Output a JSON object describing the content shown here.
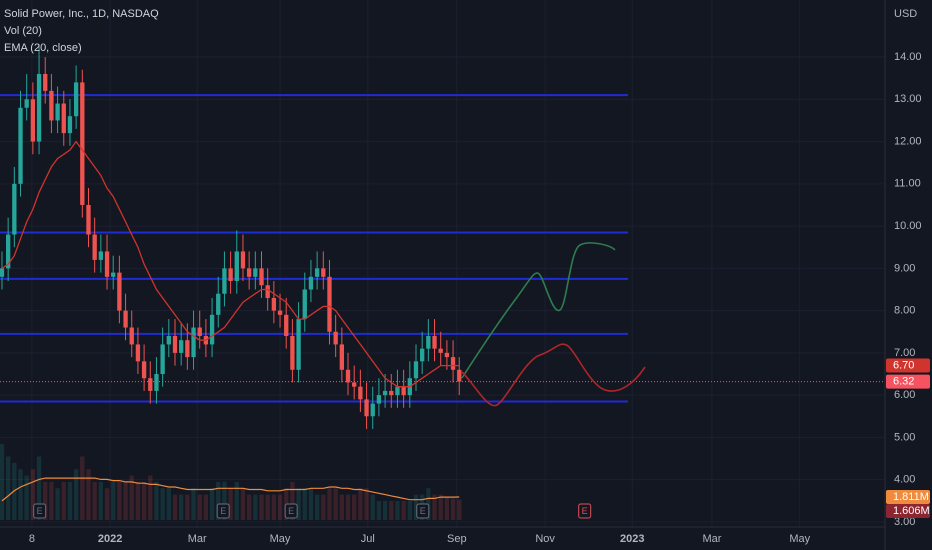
{
  "chart_data": {
    "type": "candlestick",
    "title": "Solid Power, Inc., 1D, NASDAQ",
    "currency": "USD",
    "up_color": "#26a69a",
    "down_color": "#ef5350",
    "candles": {
      "open": [
        8.8,
        9.0,
        9.8,
        11.0,
        12.8,
        13.0,
        12.0,
        13.6,
        13.2,
        12.5,
        12.9,
        12.2,
        12.6,
        13.4,
        10.5,
        9.8,
        9.2,
        9.4,
        8.8,
        8.9,
        8.0,
        7.6,
        7.2,
        6.8,
        6.4,
        6.1,
        6.5,
        7.2,
        7.4,
        7.0,
        7.3,
        6.9,
        7.6,
        7.4,
        7.2,
        7.9,
        8.4,
        9.0,
        8.7,
        9.4,
        9.0,
        8.8,
        9.0,
        8.6,
        8.3,
        8.0,
        7.9,
        7.4,
        6.6,
        7.8,
        8.5,
        8.8,
        9.0,
        8.8,
        7.5,
        7.2,
        6.6,
        6.3,
        6.2,
        5.9,
        5.5,
        5.8,
        6.0,
        6.1,
        6.0,
        6.2,
        6.0,
        6.4,
        6.8,
        7.1,
        7.4,
        7.1,
        7.0,
        6.9,
        6.6
      ],
      "high": [
        9.4,
        10.2,
        11.4,
        13.2,
        13.6,
        13.4,
        14.3,
        14.0,
        13.6,
        13.3,
        13.2,
        13.0,
        13.8,
        13.7,
        10.9,
        10.2,
        9.8,
        9.8,
        9.3,
        9.3,
        8.4,
        8.0,
        7.6,
        7.2,
        6.8,
        6.9,
        7.6,
        7.8,
        7.8,
        7.7,
        7.7,
        8.0,
        8.0,
        7.8,
        8.3,
        8.8,
        9.4,
        9.4,
        9.9,
        9.8,
        9.4,
        9.4,
        9.4,
        9.0,
        8.7,
        8.4,
        8.3,
        7.8,
        8.2,
        8.9,
        9.2,
        9.4,
        9.4,
        9.2,
        7.9,
        7.6,
        7.0,
        6.7,
        6.6,
        6.3,
        6.2,
        6.4,
        6.5,
        6.5,
        6.6,
        6.6,
        6.8,
        7.2,
        7.5,
        7.8,
        7.8,
        7.5,
        7.3,
        7.3,
        6.9
      ],
      "low": [
        8.5,
        8.7,
        9.5,
        10.7,
        12.5,
        11.7,
        11.7,
        12.9,
        12.2,
        12.2,
        11.9,
        11.9,
        12.3,
        10.2,
        9.5,
        8.9,
        8.9,
        8.5,
        8.5,
        7.7,
        7.3,
        6.9,
        6.5,
        6.1,
        5.8,
        5.8,
        6.2,
        6.9,
        6.7,
        6.7,
        6.6,
        6.6,
        7.1,
        6.9,
        6.9,
        7.6,
        8.1,
        8.4,
        8.4,
        8.7,
        8.5,
        8.5,
        8.3,
        8.0,
        7.7,
        7.6,
        7.1,
        6.3,
        6.3,
        7.5,
        8.2,
        8.5,
        8.5,
        7.2,
        6.9,
        6.3,
        6.0,
        5.9,
        5.6,
        5.2,
        5.2,
        5.5,
        5.7,
        5.7,
        5.7,
        5.7,
        5.7,
        6.1,
        6.5,
        6.8,
        6.8,
        6.7,
        6.6,
        6.3,
        6.0
      ],
      "close": [
        9.0,
        9.8,
        11.0,
        12.8,
        13.0,
        12.0,
        13.6,
        13.2,
        12.5,
        12.9,
        12.2,
        12.6,
        13.4,
        10.5,
        9.8,
        9.2,
        9.4,
        8.8,
        8.9,
        8.0,
        7.6,
        7.2,
        6.8,
        6.4,
        6.1,
        6.5,
        7.2,
        7.4,
        7.0,
        7.3,
        6.9,
        7.6,
        7.4,
        7.2,
        7.9,
        8.4,
        9.0,
        8.7,
        9.4,
        9.0,
        8.8,
        9.0,
        8.6,
        8.3,
        8.0,
        7.9,
        7.4,
        6.6,
        7.8,
        8.5,
        8.8,
        9.0,
        8.8,
        7.5,
        7.2,
        6.6,
        6.3,
        6.2,
        5.9,
        5.5,
        5.8,
        6.0,
        6.1,
        6.0,
        6.2,
        6.0,
        6.4,
        6.8,
        7.1,
        7.4,
        7.1,
        7.0,
        6.9,
        6.6,
        6.32
      ],
      "last_label": "6.32",
      "last_color": "#f7525f"
    },
    "ema": {
      "name": "EMA (20, close)",
      "color": "#d0342c",
      "last_label": "6.70",
      "values": [
        9.0,
        9.1,
        9.3,
        9.7,
        10.1,
        10.4,
        10.8,
        11.1,
        11.4,
        11.6,
        11.7,
        11.8,
        12.0,
        11.8,
        11.6,
        11.4,
        11.2,
        10.9,
        10.7,
        10.4,
        10.1,
        9.8,
        9.5,
        9.1,
        8.8,
        8.5,
        8.3,
        8.1,
        7.9,
        7.7,
        7.5,
        7.4,
        7.3,
        7.3,
        7.4,
        7.5,
        7.6,
        7.8,
        8.0,
        8.2,
        8.3,
        8.4,
        8.5,
        8.5,
        8.4,
        8.3,
        8.2,
        8.0,
        7.8,
        7.8,
        7.9,
        8.0,
        8.1,
        8.1,
        8.0,
        7.8,
        7.6,
        7.4,
        7.2,
        7.0,
        6.8,
        6.6,
        6.4,
        6.3,
        6.2,
        6.2,
        6.2,
        6.3,
        6.4,
        6.5,
        6.6,
        6.7,
        6.7,
        6.7,
        6.7
      ]
    },
    "volume": {
      "name": "Vol (20)",
      "last_label": "1.606M",
      "last_color": "#8b2630",
      "values": [
        6.0,
        5.0,
        4.5,
        4.0,
        3.5,
        4.0,
        5.0,
        3.0,
        3.0,
        2.5,
        3.0,
        3.0,
        4.0,
        5.0,
        4.0,
        3.0,
        3.0,
        2.5,
        3.0,
        3.0,
        3.0,
        3.5,
        3.0,
        3.0,
        3.5,
        3.0,
        2.5,
        2.5,
        2.0,
        2.0,
        2.0,
        2.5,
        2.0,
        2.0,
        2.5,
        3.0,
        3.0,
        2.5,
        3.0,
        2.5,
        2.0,
        2.0,
        2.0,
        2.0,
        2.0,
        2.0,
        2.5,
        3.0,
        2.5,
        2.5,
        2.5,
        2.0,
        2.0,
        2.5,
        2.5,
        2.0,
        2.0,
        2.0,
        2.5,
        2.5,
        2.0,
        1.5,
        1.5,
        1.5,
        1.5,
        1.5,
        1.5,
        2.0,
        2.0,
        2.5,
        2.0,
        2.0,
        1.8,
        1.7,
        1.606
      ]
    },
    "volume_ma": {
      "color": "#f08a3c",
      "last_label": "1.811M",
      "values": [
        1.5,
        1.9,
        2.3,
        2.6,
        2.8,
        3.0,
        3.2,
        3.3,
        3.3,
        3.3,
        3.3,
        3.3,
        3.3,
        3.3,
        3.3,
        3.3,
        3.2,
        3.2,
        3.1,
        3.1,
        3.0,
        3.0,
        2.9,
        2.9,
        2.8,
        2.8,
        2.7,
        2.6,
        2.6,
        2.5,
        2.4,
        2.4,
        2.4,
        2.4,
        2.4,
        2.5,
        2.5,
        2.5,
        2.5,
        2.5,
        2.4,
        2.4,
        2.4,
        2.3,
        2.3,
        2.3,
        2.4,
        2.4,
        2.4,
        2.4,
        2.5,
        2.5,
        2.5,
        2.6,
        2.6,
        2.5,
        2.5,
        2.4,
        2.4,
        2.3,
        2.2,
        2.1,
        2.0,
        1.9,
        1.8,
        1.7,
        1.6,
        1.6,
        1.6,
        1.7,
        1.7,
        1.8,
        1.8,
        1.8,
        1.811
      ]
    },
    "levels": {
      "color": "#1f2bd6",
      "values": [
        13.1,
        9.85,
        8.75,
        7.45,
        5.85
      ]
    },
    "events": [
      {
        "x": 6.1,
        "label": "E",
        "color": "#6a7080"
      },
      {
        "x": 35.8,
        "label": "E",
        "color": "#6a7080"
      },
      {
        "x": 46.8,
        "label": "E",
        "color": "#6a7080"
      },
      {
        "x": 68.1,
        "label": "E",
        "color": "#6a7080"
      },
      {
        "x": 94.3,
        "label": "E",
        "color": "#e0505a"
      }
    ],
    "xlim": [
      -0.32,
      142.9
    ],
    "xticks": [
      {
        "value": 4.85,
        "label": "8"
      },
      {
        "value": 17.5,
        "label": "2022"
      },
      {
        "value": 31.6,
        "label": "Mar"
      },
      {
        "value": 45,
        "label": "May"
      },
      {
        "value": 59.2,
        "label": "Jul"
      },
      {
        "value": 73.6,
        "label": "Sep"
      },
      {
        "value": 87.9,
        "label": "Nov"
      },
      {
        "value": 102,
        "label": "2023"
      },
      {
        "value": 114.9,
        "label": "Mar"
      },
      {
        "value": 129.1,
        "label": "May"
      }
    ],
    "ylim": [
      2.88,
      15.35
    ],
    "yticks": [
      {
        "value": 3,
        "label": "3.00"
      },
      {
        "value": 4,
        "label": "4.00"
      },
      {
        "value": 5,
        "label": "5.00"
      },
      {
        "value": 6,
        "label": "6.00"
      },
      {
        "value": 7,
        "label": "7.00"
      },
      {
        "value": 8,
        "label": "8.00"
      },
      {
        "value": 9,
        "label": "9.00"
      },
      {
        "value": 10,
        "label": "10.00"
      },
      {
        "value": 11,
        "label": "11.00"
      },
      {
        "value": 12,
        "label": "12.00"
      },
      {
        "value": 13,
        "label": "13.00"
      },
      {
        "value": 14,
        "label": "14.00"
      }
    ]
  }
}
